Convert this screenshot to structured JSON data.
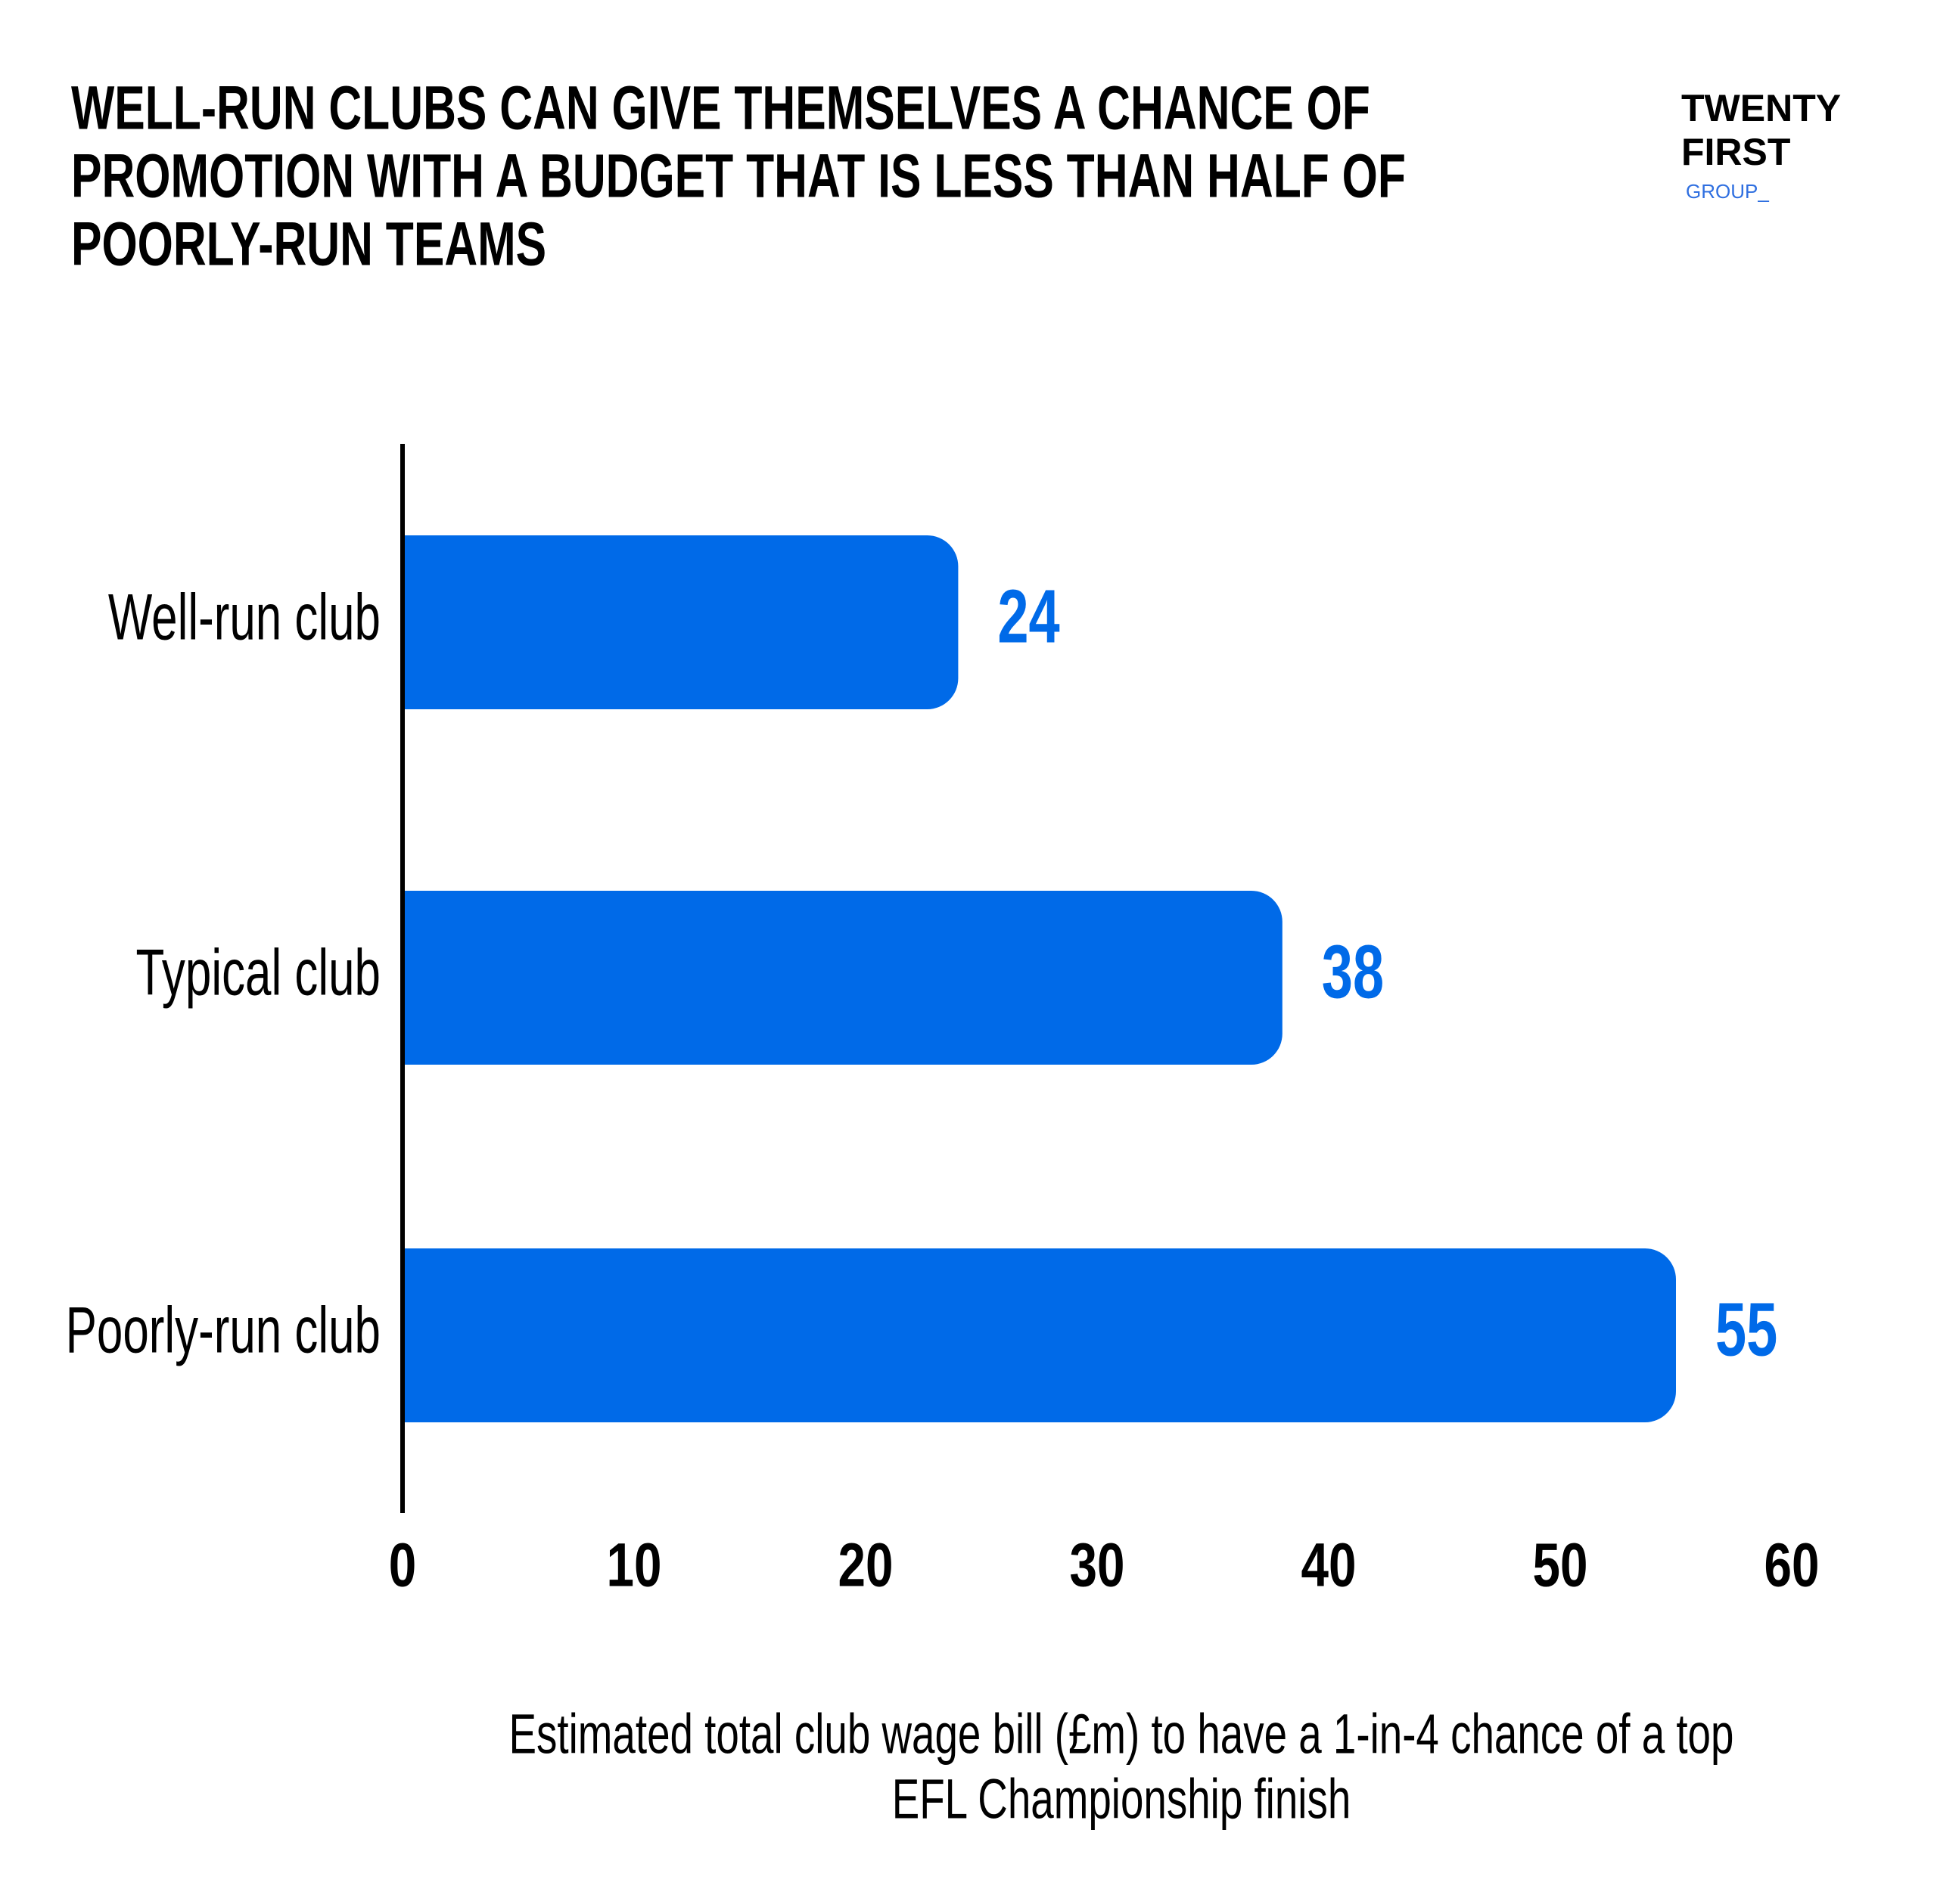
{
  "logo": {
    "line1": "TWENTY",
    "line2": "FIRST",
    "line3": "GROUP_"
  },
  "chart_data": {
    "type": "hbar",
    "title": [
      "WELL-RUN CLUBS CAN GIVE THEMSELVES A CHANCE OF",
      "PROMOTION WITH A BUDGET THAT IS LESS THAN HALF OF",
      "POORLY-RUN TEAMS"
    ],
    "x_label": [
      "Estimated total club wage bill (£m) to have a 1-in-4 chance of a top",
      "EFL Championship finish"
    ],
    "categories": [
      "Well-run club",
      "Typical club",
      "Poorly-run club"
    ],
    "values": [
      24,
      38,
      55
    ],
    "color": "#006ae8",
    "xlim": [
      0,
      60
    ],
    "xticks": [
      0,
      10,
      20,
      30,
      40,
      50,
      60
    ]
  }
}
